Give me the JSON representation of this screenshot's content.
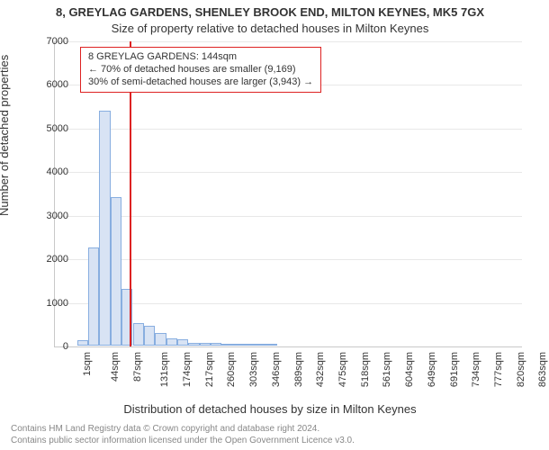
{
  "title_main": "8, GREYLAG GARDENS, SHENLEY BROOK END, MILTON KEYNES, MK5 7GX",
  "title_sub": "Size of property relative to detached houses in Milton Keynes",
  "title_fontsize": 13,
  "subtitle_fontsize": 13,
  "ylabel": "Number of detached properties",
  "xlabel": "Distribution of detached houses by size in Milton Keynes",
  "axis_label_fontsize": 13,
  "tick_fontsize": 11,
  "ylim": [
    0,
    7000
  ],
  "ytick_step": 1000,
  "yticks": [
    0,
    1000,
    2000,
    3000,
    4000,
    5000,
    6000,
    7000
  ],
  "xtick_labels": [
    "1sqm",
    "44sqm",
    "87sqm",
    "131sqm",
    "174sqm",
    "217sqm",
    "260sqm",
    "303sqm",
    "346sqm",
    "389sqm",
    "432sqm",
    "475sqm",
    "518sqm",
    "561sqm",
    "604sqm",
    "649sqm",
    "691sqm",
    "734sqm",
    "777sqm",
    "820sqm",
    "863sqm"
  ],
  "xtick_step": 2,
  "bars": {
    "count": 42,
    "bin_width_sqm": 21.5,
    "values": [
      0,
      0,
      130,
      2250,
      5400,
      3400,
      1300,
      520,
      450,
      280,
      160,
      150,
      70,
      70,
      60,
      30,
      40,
      30,
      20,
      20,
      0,
      0,
      0,
      0,
      0,
      0,
      0,
      0,
      0,
      0,
      0,
      0,
      0,
      0,
      0,
      0,
      0,
      0,
      0,
      0,
      0,
      0
    ],
    "fill_color": "#d8e3f4",
    "border_color": "#88aee0"
  },
  "reference_line": {
    "x_sqm": 144,
    "color": "#dd2222"
  },
  "annotation": {
    "lines": [
      "8 GREYLAG GARDENS: 144sqm",
      "← 70% of detached houses are smaller (9,169)",
      "30% of semi-detached houses are larger (3,943) →"
    ],
    "border_color": "#dd2222",
    "fontsize": 11
  },
  "grid_color": "#e8e8e8",
  "axis_color": "#c8c8c8",
  "background_color": "#ffffff",
  "footer": [
    "Contains HM Land Registry data © Crown copyright and database right 2024.",
    "Contains public sector information licensed under the Open Government Licence v3.0."
  ],
  "footer_fontsize": 10,
  "footer_color": "#888888"
}
